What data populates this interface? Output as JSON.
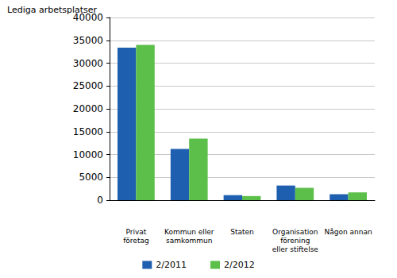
{
  "chart_data": {
    "type": "bar",
    "title": "Lediga arbetsplatser",
    "categories": [
      "Privat\nföretag",
      "Kommun eller\nsamkommun",
      "Staten",
      "Organisation\nförening\neller stiftelse",
      "Någon annan"
    ],
    "series": [
      {
        "name": "2/2011",
        "color": "#1f5fb0",
        "values": [
          33400,
          11200,
          1100,
          3200,
          1300
        ]
      },
      {
        "name": "2/2012",
        "color": "#5cbf4a",
        "values": [
          34000,
          13500,
          900,
          2700,
          1700
        ]
      }
    ],
    "ylim": [
      0,
      40000
    ],
    "yticks": [
      0,
      5000,
      10000,
      15000,
      20000,
      25000,
      30000,
      35000,
      40000
    ],
    "grid": true,
    "legend": "bottom"
  }
}
